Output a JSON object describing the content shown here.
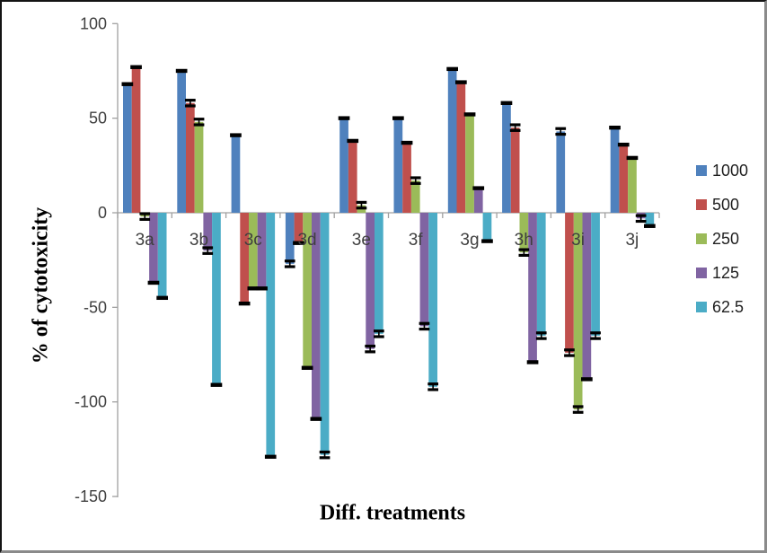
{
  "chart_data": {
    "type": "bar",
    "title": "",
    "xlabel": "Diff. treatments",
    "ylabel": "% of cytotoxicity",
    "categories": [
      "3a",
      "3b",
      "3c",
      "3d",
      "3e",
      "3f",
      "3g",
      "3h",
      "3i",
      "3j"
    ],
    "y_ticks": [
      100,
      50,
      0,
      -50,
      -100,
      -150
    ],
    "ylim": [
      -150,
      100
    ],
    "grid": "off",
    "legend_position": "right",
    "error_bars": true,
    "series": [
      {
        "name": "1000",
        "color": "#4F81BD",
        "values": [
          68,
          75,
          41,
          -27,
          50,
          50,
          76,
          58,
          43,
          45
        ],
        "errors": [
          1,
          1,
          1,
          1.5,
          1,
          1,
          1,
          1,
          1.5,
          1
        ]
      },
      {
        "name": "500",
        "color": "#C0504D",
        "values": [
          77,
          58,
          -48,
          -16,
          38,
          37,
          69,
          45,
          -74,
          36
        ],
        "errors": [
          1,
          1.5,
          1,
          1,
          1,
          1,
          1,
          1.5,
          1.5,
          1
        ]
      },
      {
        "name": "250",
        "color": "#9BBB59",
        "values": [
          -2,
          48,
          -40,
          -82,
          4,
          17,
          52,
          -21,
          -104,
          29
        ],
        "errors": [
          1.5,
          1.5,
          1,
          1,
          1.5,
          1.5,
          1,
          1.5,
          1.5,
          1
        ]
      },
      {
        "name": "125",
        "color": "#8064A2",
        "values": [
          -37,
          -20,
          -40,
          -109,
          -72,
          -60,
          13,
          -79,
          -88,
          -3
        ],
        "errors": [
          1,
          1.5,
          1,
          1,
          1.5,
          1.5,
          1,
          1,
          1,
          1.5
        ]
      },
      {
        "name": "62.5",
        "color": "#4BACC6",
        "values": [
          -45,
          -91,
          -129,
          -128,
          -64,
          -92,
          -15,
          -65,
          -65,
          -7
        ],
        "errors": [
          1,
          1,
          1,
          1.5,
          1.5,
          1.5,
          1,
          1.5,
          1.5,
          1
        ]
      }
    ],
    "axis_color": "#a0a0a0",
    "tick_label_color": "#3f3f3f"
  }
}
